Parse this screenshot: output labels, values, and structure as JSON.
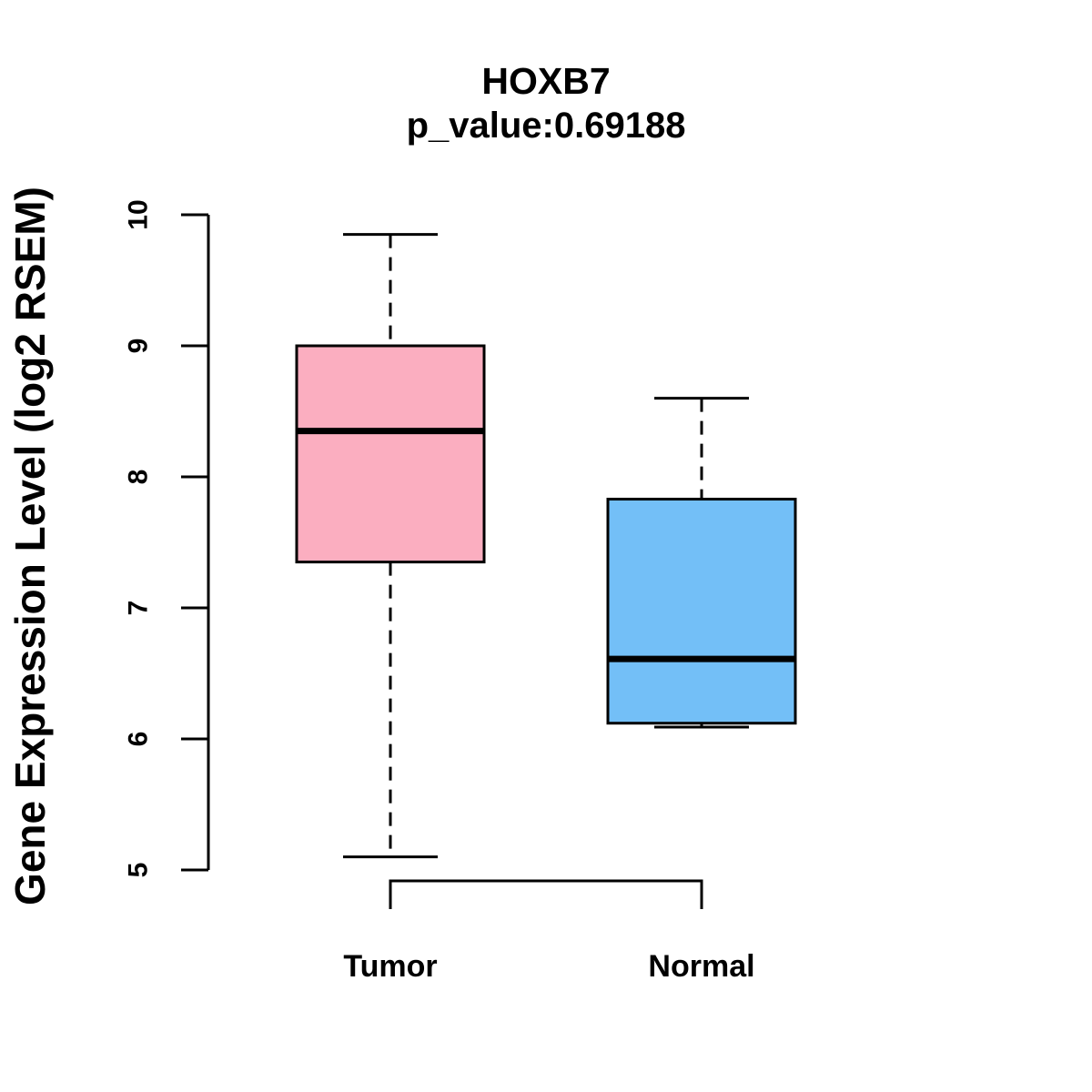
{
  "figure": {
    "title": "HOXB7",
    "subtitle": "p_value:0.69188"
  },
  "chart_data": {
    "type": "boxplot",
    "title": "HOXB7",
    "subtitle": "p_value:0.69188",
    "xlabel": "",
    "ylabel": "Gene Expression Level (log2 RSEM)",
    "ylim": [
      5,
      10
    ],
    "yticks": [
      5,
      6,
      7,
      8,
      9,
      10
    ],
    "grid": false,
    "legend": "none",
    "categories": [
      "Tumor",
      "Normal"
    ],
    "series": [
      {
        "name": "Tumor",
        "box_color": "#FBAEC0",
        "whisker_low": 5.1,
        "q1": 7.35,
        "median": 8.35,
        "q3": 9.0,
        "whisker_high": 9.85
      },
      {
        "name": "Normal",
        "box_color": "#73BFF7",
        "whisker_low": 6.09,
        "q1": 6.12,
        "median": 6.61,
        "q3": 7.83,
        "whisker_high": 8.6
      }
    ],
    "stroke_color": "#000000",
    "background": "#FFFFFF"
  }
}
